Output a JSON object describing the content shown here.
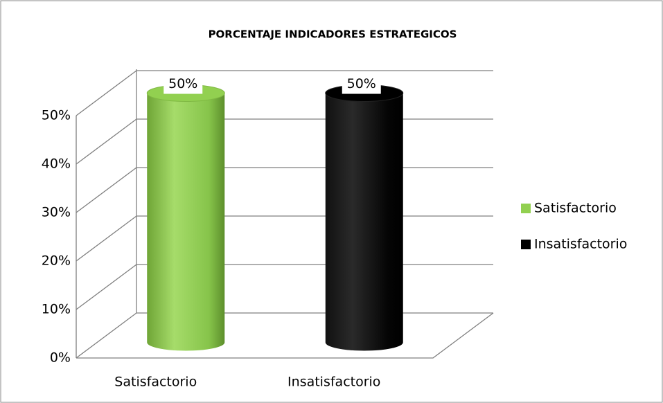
{
  "chart_data": {
    "type": "bar3d",
    "title": "PORCENTAJE INDICADORES ESTRATEGICOS",
    "categories": [
      "Satisfactorio",
      "Insatisfactorio"
    ],
    "values": [
      50,
      50
    ],
    "value_labels": [
      "50%",
      "50%"
    ],
    "colors": [
      "#92d050",
      "#000000"
    ],
    "ylim": [
      0,
      50
    ],
    "yticks": [
      {
        "value": 0,
        "label": "0%"
      },
      {
        "value": 10,
        "label": "10%"
      },
      {
        "value": 20,
        "label": "20%"
      },
      {
        "value": 30,
        "label": "30%"
      },
      {
        "value": 40,
        "label": "40%"
      },
      {
        "value": 50,
        "label": "50%"
      }
    ],
    "grid": true,
    "legend": "right"
  }
}
